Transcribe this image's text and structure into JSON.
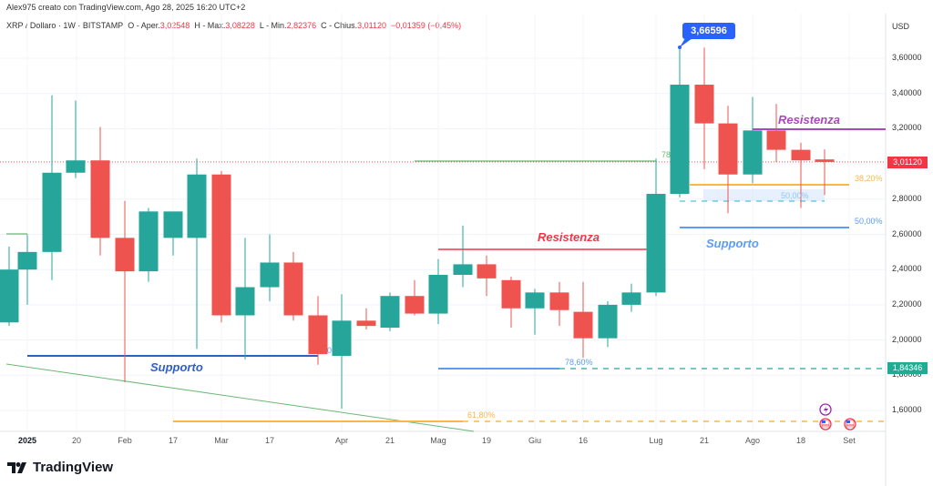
{
  "header": {
    "credit": "Alex975 creato con TradingView.com, Ago 28, 2025 16:20 UTC+2",
    "symbol": "XRP / Dollaro · 1W · BITSTAMP",
    "open_label": "O - Aper.",
    "open": "3,02548",
    "high_label": "H - Max.",
    "high": "3,08228",
    "low_label": "L - Min.",
    "low": "2,82376",
    "close_label": "C - Chius.",
    "close": "3,01120",
    "change": "−0,01359 (−0,45%)"
  },
  "price_axis": {
    "currency": "USD",
    "ticks": [
      "3,60000",
      "3,40000",
      "3,20000",
      "2,80000",
      "2,60000",
      "2,40000",
      "2,20000",
      "2,00000",
      "1,80000",
      "1,60000"
    ],
    "current_price_tag": "3,01120",
    "current_price_color": "#f23645",
    "level_tag": "1,84346",
    "level_tag_color": "#22ab94"
  },
  "time_axis": {
    "ticks": [
      "2025",
      "20",
      "Feb",
      "17",
      "Mar",
      "17",
      "Apr",
      "21",
      "Mag",
      "19",
      "Giu",
      "16",
      "Lug",
      "21",
      "Ago",
      "18",
      "Set"
    ]
  },
  "annotations": {
    "high_bubble": "3,66596",
    "resistenza_1": "Resistenza",
    "resistenza_2": "Resistenza",
    "supporto_1": "Supporto",
    "supporto_2": "Supporto",
    "fib_382": "38,20%",
    "fib_50_a": "50,00%",
    "fib_50_b": "50,00%",
    "fib_786": "78,60%",
    "fib_618": "61,80%",
    "fib_78_partial": "78",
    "fib_0_partial": "0"
  },
  "branding": {
    "logo_text": "TradingView"
  },
  "colors": {
    "up": "#26a69a",
    "down": "#ef5350",
    "support": "#2f5fc4",
    "resistance_red": "#f23645",
    "resistance_purple": "#ab47bc",
    "fib_orange": "#f7b84b"
  },
  "chart_data": {
    "type": "candlestick",
    "title": "XRP / Dollaro · 1W · BITSTAMP",
    "xlabel": "",
    "ylabel": "USD",
    "ylim": [
      1.47,
      3.85
    ],
    "grid": true,
    "x_ticks": [
      "2025",
      "20",
      "Feb",
      "17",
      "Mar",
      "17",
      "Apr",
      "21",
      "Mag",
      "19",
      "Giu",
      "16",
      "Lug",
      "21",
      "Ago",
      "18",
      "Set"
    ],
    "candles": [
      {
        "x": 10,
        "o": 2.1,
        "h": 2.53,
        "l": 2.08,
        "c": 2.4
      },
      {
        "x": 30,
        "o": 2.4,
        "h": 2.6,
        "l": 2.2,
        "c": 2.5
      },
      {
        "x": 57,
        "o": 2.5,
        "h": 3.39,
        "l": 2.34,
        "c": 2.95
      },
      {
        "x": 83,
        "o": 2.95,
        "h": 3.36,
        "l": 2.92,
        "c": 3.02
      },
      {
        "x": 110,
        "o": 3.02,
        "h": 3.21,
        "l": 2.48,
        "c": 2.58
      },
      {
        "x": 137,
        "o": 2.58,
        "h": 2.79,
        "l": 1.76,
        "c": 2.39
      },
      {
        "x": 163,
        "o": 2.39,
        "h": 2.75,
        "l": 2.33,
        "c": 2.73
      },
      {
        "x": 190,
        "o": 2.58,
        "h": 2.7,
        "l": 2.48,
        "c": 2.73
      },
      {
        "x": 216,
        "o": 2.58,
        "h": 3.03,
        "l": 1.95,
        "c": 2.94
      },
      {
        "x": 243,
        "o": 2.94,
        "h": 2.96,
        "l": 2.1,
        "c": 2.14
      },
      {
        "x": 269,
        "o": 2.14,
        "h": 2.58,
        "l": 1.89,
        "c": 2.3
      },
      {
        "x": 296,
        "o": 2.3,
        "h": 2.6,
        "l": 2.22,
        "c": 2.44
      },
      {
        "x": 322,
        "o": 2.44,
        "h": 2.5,
        "l": 2.11,
        "c": 2.14
      },
      {
        "x": 349,
        "o": 2.14,
        "h": 2.25,
        "l": 1.86,
        "c": 1.92
      },
      {
        "x": 375,
        "o": 1.91,
        "h": 2.26,
        "l": 1.61,
        "c": 2.11
      },
      {
        "x": 402,
        "o": 2.11,
        "h": 2.18,
        "l": 2.06,
        "c": 2.08
      },
      {
        "x": 428,
        "o": 2.07,
        "h": 2.27,
        "l": 2.05,
        "c": 2.25
      },
      {
        "x": 455,
        "o": 2.25,
        "h": 2.34,
        "l": 2.14,
        "c": 2.15
      },
      {
        "x": 481,
        "o": 2.15,
        "h": 2.46,
        "l": 2.09,
        "c": 2.37
      },
      {
        "x": 508,
        "o": 2.37,
        "h": 2.65,
        "l": 2.3,
        "c": 2.43
      },
      {
        "x": 534,
        "o": 2.43,
        "h": 2.48,
        "l": 2.25,
        "c": 2.35
      },
      {
        "x": 561,
        "o": 2.34,
        "h": 2.36,
        "l": 2.07,
        "c": 2.18
      },
      {
        "x": 587,
        "o": 2.18,
        "h": 2.29,
        "l": 2.03,
        "c": 2.27
      },
      {
        "x": 614,
        "o": 2.27,
        "h": 2.33,
        "l": 2.08,
        "c": 2.17
      },
      {
        "x": 640,
        "o": 2.16,
        "h": 2.33,
        "l": 1.9,
        "c": 2.01
      },
      {
        "x": 667,
        "o": 2.01,
        "h": 2.22,
        "l": 1.96,
        "c": 2.2
      },
      {
        "x": 693,
        "o": 2.2,
        "h": 2.32,
        "l": 2.16,
        "c": 2.27
      },
      {
        "x": 720,
        "o": 2.27,
        "h": 3.03,
        "l": 2.25,
        "c": 2.83
      },
      {
        "x": 746,
        "o": 2.83,
        "h": 3.66596,
        "l": 2.81,
        "c": 3.45
      },
      {
        "x": 773,
        "o": 3.45,
        "h": 3.66,
        "l": 2.97,
        "c": 3.23
      },
      {
        "x": 799,
        "o": 3.23,
        "h": 3.33,
        "l": 2.72,
        "c": 2.94
      },
      {
        "x": 826,
        "o": 2.94,
        "h": 3.38,
        "l": 2.89,
        "c": 3.19
      },
      {
        "x": 852,
        "o": 3.19,
        "h": 3.34,
        "l": 3.01,
        "c": 3.08
      },
      {
        "x": 879,
        "o": 3.08,
        "h": 3.12,
        "l": 2.75,
        "c": 3.02
      },
      {
        "x": 905,
        "o": 3.02548,
        "h": 3.08228,
        "l": 2.82376,
        "c": 3.0112
      }
    ],
    "levels": [
      {
        "name": "Supporto",
        "price": 1.905,
        "color": "#2f5fc4"
      },
      {
        "name": "Resistenza",
        "price": 2.51,
        "color": "#f23645"
      },
      {
        "name": "Resistenza",
        "price": 3.2,
        "color": "#ab47bc"
      },
      {
        "name": "Supporto",
        "price": 2.64,
        "color": "#5b9cf6"
      },
      {
        "name": "fib 38,20%",
        "price": 2.87,
        "color": "#f7b84b"
      },
      {
        "name": "fib 50,00%",
        "price": 2.64,
        "color": "#5b9cf6"
      },
      {
        "name": "fib 78,60%",
        "price": 1.84346,
        "color": "#5b9cf6"
      },
      {
        "name": "fib 61,80%",
        "price": 1.53,
        "color": "#f7b84b"
      }
    ]
  }
}
